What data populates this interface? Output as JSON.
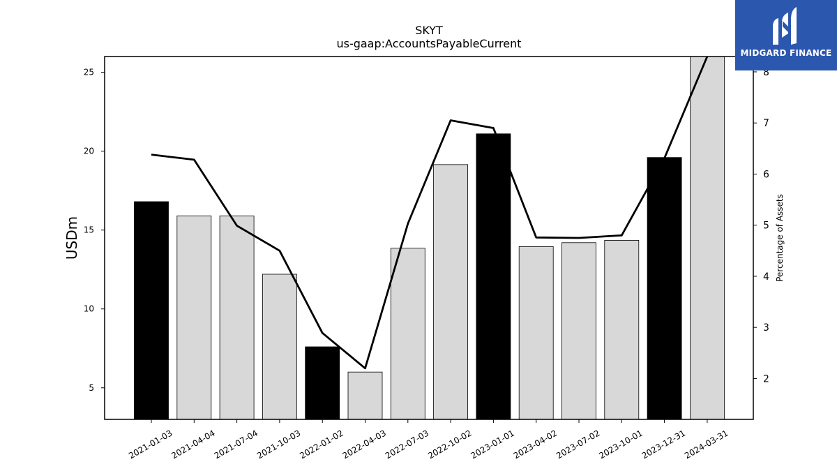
{
  "brand": {
    "name": "MIDGARD FINANCE",
    "color": "#2b57ae"
  },
  "chart_data": {
    "type": "bar",
    "title": "SKYT",
    "subtitle": "us-gaap:AccountsPayableCurrent",
    "ylabel": "USDm",
    "ylabel_right": "Percentage of Assets",
    "ylim": [
      3,
      26
    ],
    "ylim_right": [
      1.2,
      8.3
    ],
    "yticks": [
      5,
      10,
      15,
      20,
      25
    ],
    "yticks_right": [
      2,
      3,
      4,
      5,
      6,
      7,
      8
    ],
    "categories": [
      "2021-01-03",
      "2021-04-04",
      "2021-07-04",
      "2021-10-03",
      "2022-01-02",
      "2022-04-03",
      "2022-07-03",
      "2022-10-02",
      "2023-01-01",
      "2023-04-02",
      "2023-07-02",
      "2023-10-01",
      "2023-12-31",
      "2024-03-31"
    ],
    "series": [
      {
        "values": [
          16.8,
          15.9,
          15.9,
          12.2,
          7.6,
          6.0,
          13.85,
          19.15,
          21.1,
          13.95,
          14.2,
          14.35,
          19.6,
          26.0
        ],
        "highlight": [
          true,
          false,
          false,
          false,
          true,
          false,
          false,
          false,
          true,
          false,
          false,
          false,
          true,
          false
        ],
        "colors": {
          "highlight": "#000000",
          "normal": "#d8d8d8"
        }
      },
      {
        "axis": "right",
        "type": "line",
        "values": [
          6.38,
          6.28,
          4.99,
          4.5,
          2.89,
          2.2,
          5.03,
          7.05,
          6.9,
          4.76,
          4.75,
          4.8,
          6.31,
          8.3
        ],
        "color": "#000000"
      }
    ],
    "grid": false
  }
}
